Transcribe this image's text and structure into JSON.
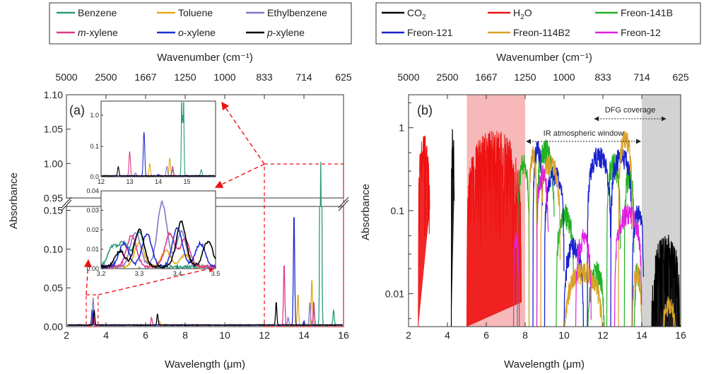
{
  "chart_data": [
    {
      "panel_label": "(a)",
      "type": "line",
      "xlabel": "Wavelength (μm)",
      "ylabel": "Absorbance",
      "x2label": "Wavenumber (cm⁻¹)",
      "xlim": [
        2,
        16
      ],
      "x_ticks": [
        "2",
        "4",
        "6",
        "8",
        "10",
        "12",
        "14",
        "16"
      ],
      "x2_ticks": [
        "5000",
        "2500",
        "1667",
        "1250",
        "1000",
        "833",
        "714",
        "625"
      ],
      "y_upper_ticks": [
        "0.95",
        "1.00",
        "1.05",
        "1.10"
      ],
      "y_lower_ticks": [
        "0.00",
        "0.05",
        "0.10",
        "0.15"
      ],
      "y_break": [
        0.155,
        0.95
      ],
      "colors": {
        "Benzene": "#2a9a7a",
        "Toluene": "#e2a81c",
        "Ethylbenzene": "#8877c4",
        "m-xylene": "#dc3c8a",
        "o-xylene": "#1f2fd0",
        "p-xylene": "#000000"
      },
      "legend": [
        {
          "prefix": "",
          "ital": "",
          "rest": "Benzene",
          "series": "Benzene"
        },
        {
          "prefix": "",
          "ital": "",
          "rest": "Toluene",
          "series": "Toluene"
        },
        {
          "prefix": "",
          "ital": "",
          "rest": "Ethylbenzene",
          "series": "Ethylbenzene"
        },
        {
          "prefix": "",
          "ital": "m",
          "rest": "-xylene",
          "series": "m-xylene"
        },
        {
          "prefix": "",
          "ital": "o",
          "rest": "-xylene",
          "series": "o-xylene"
        },
        {
          "prefix": "",
          "ital": "p",
          "rest": "-xylene",
          "series": "p-xylene"
        }
      ],
      "series": [
        {
          "name": "Benzene",
          "peaks": [
            [
              14.85,
              1.0
            ],
            [
              14.5,
              0.02
            ],
            [
              15.5,
              0.02
            ],
            [
              3.3,
              0.01
            ]
          ]
        },
        {
          "name": "Toluene",
          "peaks": [
            [
              13.7,
              0.04
            ],
            [
              14.4,
              0.06
            ],
            [
              6.7,
              0.005
            ],
            [
              3.3,
              0.01
            ]
          ]
        },
        {
          "name": "Ethylbenzene",
          "peaks": [
            [
              3.35,
              0.035
            ],
            [
              14.3,
              0.03
            ],
            [
              13.2,
              0.01
            ]
          ]
        },
        {
          "name": "m-xylene",
          "peaks": [
            [
              13.0,
              0.08
            ],
            [
              14.5,
              0.03
            ],
            [
              6.3,
              0.01
            ],
            [
              3.35,
              0.015
            ]
          ]
        },
        {
          "name": "o-xylene",
          "peaks": [
            [
              13.5,
              0.145
            ],
            [
              14.0,
              0.005
            ],
            [
              3.3,
              0.02
            ]
          ]
        },
        {
          "name": "p-xylene",
          "peaks": [
            [
              12.6,
              0.03
            ],
            [
              3.4,
              0.02
            ],
            [
              6.6,
              0.015
            ]
          ]
        }
      ],
      "insets": [
        {
          "xlim": [
            12,
            16
          ],
          "ylim": [
            0,
            1.15
          ],
          "x_ticks": [
            "12",
            "13",
            "14",
            "15"
          ],
          "y_ticks": [
            "0.0",
            "0.1",
            "1.0"
          ]
        },
        {
          "xlim": [
            3.2,
            3.5
          ],
          "ylim": [
            0,
            0.04
          ],
          "x_ticks": [
            "3.2",
            "3.3",
            "3.4",
            "3.5"
          ],
          "y_ticks": [
            "0.00",
            "0.01",
            "0.02",
            "0.03",
            "0.04"
          ]
        }
      ]
    },
    {
      "panel_label": "(b)",
      "type": "line",
      "yscale": "log",
      "xlabel": "Wavelength (μm)",
      "ylabel": "Absorbance",
      "x2label": "Wavenumber (cm⁻¹)",
      "xlim": [
        2,
        16
      ],
      "ylim": [
        0.004,
        2.5
      ],
      "x_ticks": [
        "2",
        "4",
        "6",
        "8",
        "10",
        "12",
        "14",
        "16"
      ],
      "x2_ticks": [
        "5000",
        "2500",
        "1667",
        "1250",
        "1000",
        "833",
        "714",
        "625"
      ],
      "y_ticks": [
        "0.01",
        "0.1",
        "1"
      ],
      "colors": {
        "CO2": "#000000",
        "H2O": "#ee1111",
        "Freon-141B": "#22b022",
        "Freon-121": "#1a22cc",
        "Freon-114B2": "#d9a227",
        "Freon-12": "#e020e0"
      },
      "legend": [
        {
          "main": "CO",
          "sub": "2",
          "series": "CO2"
        },
        {
          "main": "H",
          "sub": "2",
          "tail": "O",
          "series": "H2O"
        },
        {
          "main": "Freon-141B",
          "sub": "",
          "series": "Freon-141B"
        },
        {
          "main": "Freon-121",
          "sub": "",
          "series": "Freon-121"
        },
        {
          "main": "Freon-114B2",
          "sub": "",
          "series": "Freon-114B2"
        },
        {
          "main": "Freon-12",
          "sub": "",
          "series": "Freon-12"
        }
      ],
      "bands": [
        {
          "name": "pink",
          "x": [
            5,
            8
          ],
          "color": "#f6b8b8"
        },
        {
          "name": "gray",
          "x": [
            14,
            16
          ],
          "color": "#d2d2d2"
        }
      ],
      "annotations": [
        {
          "text": "IR atmospheric window",
          "x": [
            8,
            14
          ]
        },
        {
          "text": "DFG coverage",
          "x": [
            11.5,
            15.3
          ]
        }
      ]
    }
  ]
}
